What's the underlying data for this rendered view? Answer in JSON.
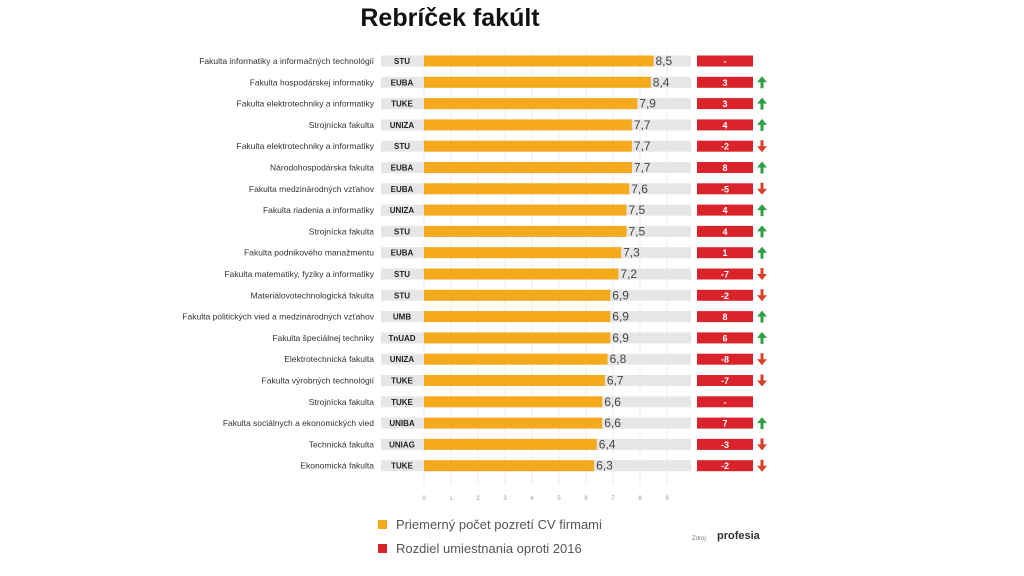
{
  "chart_data": {
    "type": "bar",
    "title": "Rebríček fakúlt",
    "colors": {
      "bar": "#f5aa1e",
      "rank": "#d9222a",
      "up": "#2ea043",
      "down": "#d9402a",
      "track": "#e6e6e6"
    },
    "xlim": [
      0,
      9
    ],
    "x_ticks": [
      "0",
      "1",
      "2",
      "3",
      "4",
      "5",
      "6",
      "7",
      "8",
      "9"
    ],
    "rows": [
      {
        "faculty": "Fakulta informatiky a informačných technológií",
        "uni": "STU",
        "value": 8.5,
        "label": "8,5",
        "rank_change": "-",
        "dir": ""
      },
      {
        "faculty": "Fakulta hospodárskej informatiky",
        "uni": "EUBA",
        "value": 8.4,
        "label": "8,4",
        "rank_change": "3",
        "dir": "up"
      },
      {
        "faculty": "Fakulta elektrotechniky a informatiky",
        "uni": "TUKE",
        "value": 7.9,
        "label": "7,9",
        "rank_change": "3",
        "dir": "up"
      },
      {
        "faculty": "Strojnícka fakulta",
        "uni": "UNIZA",
        "value": 7.7,
        "label": "7,7",
        "rank_change": "4",
        "dir": "up"
      },
      {
        "faculty": "Fakulta elektrotechniky a informatiky",
        "uni": "STU",
        "value": 7.7,
        "label": "7,7",
        "rank_change": "-2",
        "dir": "down"
      },
      {
        "faculty": "Národohospodárska fakulta",
        "uni": "EUBA",
        "value": 7.7,
        "label": "7,7",
        "rank_change": "8",
        "dir": "up"
      },
      {
        "faculty": "Fakulta medzinárodných vzťahov",
        "uni": "EUBA",
        "value": 7.6,
        "label": "7,6",
        "rank_change": "-5",
        "dir": "down"
      },
      {
        "faculty": "Fakulta riadenia a informatiky",
        "uni": "UNIZA",
        "value": 7.5,
        "label": "7,5",
        "rank_change": "4",
        "dir": "up"
      },
      {
        "faculty": "Strojnícka fakulta",
        "uni": "STU",
        "value": 7.5,
        "label": "7,5",
        "rank_change": "4",
        "dir": "up"
      },
      {
        "faculty": "Fakulta podnikového manažmentu",
        "uni": "EUBA",
        "value": 7.3,
        "label": "7,3",
        "rank_change": "1",
        "dir": "up"
      },
      {
        "faculty": "Fakulta matematiky, fyziky a informatiky",
        "uni": "STU",
        "value": 7.2,
        "label": "7,2",
        "rank_change": "-7",
        "dir": "down"
      },
      {
        "faculty": "Materiálovotechnologická fakulta",
        "uni": "STU",
        "value": 6.9,
        "label": "6,9",
        "rank_change": "-2",
        "dir": "down"
      },
      {
        "faculty": "Fakulta politických vied a medzinárodných vzťahov",
        "uni": "UMB",
        "value": 6.9,
        "label": "6,9",
        "rank_change": "8",
        "dir": "up"
      },
      {
        "faculty": "Fakulta špeciálnej techniky",
        "uni": "TnUAD",
        "value": 6.9,
        "label": "6,9",
        "rank_change": "6",
        "dir": "up"
      },
      {
        "faculty": "Elektrotechnická fakulta",
        "uni": "UNIZA",
        "value": 6.8,
        "label": "6,8",
        "rank_change": "-8",
        "dir": "down"
      },
      {
        "faculty": "Fakulta výrobných technológií",
        "uni": "TUKE",
        "value": 6.7,
        "label": "6,7",
        "rank_change": "-7",
        "dir": "down"
      },
      {
        "faculty": "Strojnícka fakulta",
        "uni": "TUKE",
        "value": 6.6,
        "label": "6,6",
        "rank_change": "-",
        "dir": ""
      },
      {
        "faculty": "Fakulta sociálnych a ekonomických vied",
        "uni": "UNIBA",
        "value": 6.6,
        "label": "6,6",
        "rank_change": "7",
        "dir": "up"
      },
      {
        "faculty": "Technická fakulta",
        "uni": "UNIAG",
        "value": 6.4,
        "label": "6,4",
        "rank_change": "-3",
        "dir": "down"
      },
      {
        "faculty": "Ekonomická fakulta",
        "uni": "TUKE",
        "value": 6.3,
        "label": "6,3",
        "rank_change": "-2",
        "dir": "down"
      }
    ],
    "legend": [
      {
        "label": "Priemerný počet pozretí CV firmami",
        "color": "#f5aa1e"
      },
      {
        "label": "Rozdiel umiestnania oproti 2016",
        "color": "#d9222a"
      }
    ],
    "source_label": "Zdroj:",
    "source_logo": "profesia"
  }
}
